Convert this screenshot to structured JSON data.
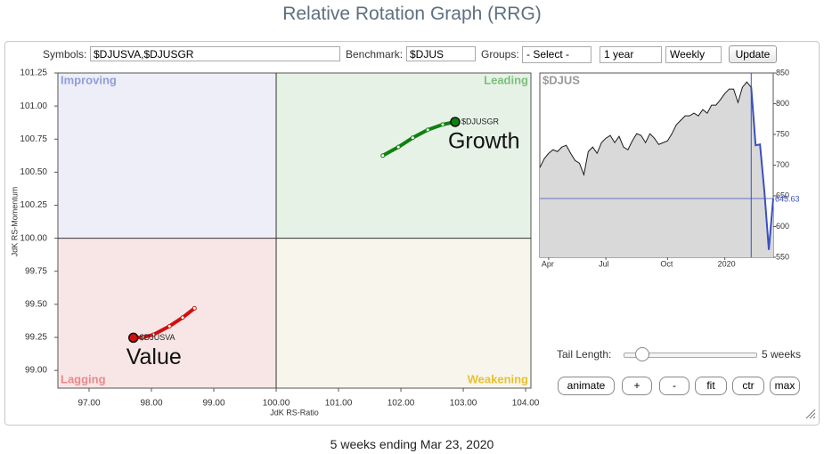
{
  "header": {
    "title": "Relative Rotation Graph (RRG)"
  },
  "controls": {
    "symbols_label": "Symbols:",
    "symbols_value": "$DJUSVA,$DJUSGR",
    "benchmark_label": "Benchmark:",
    "benchmark_value": "$DJUS",
    "groups_label": "Groups:",
    "groups_value": "- Select -",
    "period_value": "1 year",
    "frequency_value": "Weekly",
    "update": "Update"
  },
  "chart_data": [
    {
      "type": "rrg",
      "xlabel": "JdK RS-Ratio",
      "ylabel": "JdK RS-Momentum",
      "xlim": [
        96.5,
        104.085
      ],
      "ylim": [
        98.866,
        101.25
      ],
      "center": [
        100,
        100
      ],
      "xticks": [
        {
          "value": 97,
          "label": "97.00"
        },
        {
          "value": 98,
          "label": "98.00"
        },
        {
          "value": 99,
          "label": "99.00"
        },
        {
          "value": 100,
          "label": "100.00"
        },
        {
          "value": 101,
          "label": "101.00"
        },
        {
          "value": 102,
          "label": "102.00"
        },
        {
          "value": 103,
          "label": "103.00"
        },
        {
          "value": 104,
          "label": "104.00"
        }
      ],
      "yticks": [
        {
          "value": 99,
          "label": "99.00"
        },
        {
          "value": 99.25,
          "label": "99.25"
        },
        {
          "value": 99.5,
          "label": "99.50"
        },
        {
          "value": 99.75,
          "label": "99.75"
        },
        {
          "value": 100,
          "label": "100.00"
        },
        {
          "value": 100.25,
          "label": "100.25"
        },
        {
          "value": 100.5,
          "label": "100.50"
        },
        {
          "value": 100.75,
          "label": "100.75"
        },
        {
          "value": 101,
          "label": "101.00"
        },
        {
          "value": 101.25,
          "label": "101.25"
        }
      ],
      "quadrants": {
        "improving": "Improving",
        "leading": "Leading",
        "lagging": "Lagging",
        "weakening": "Weakening"
      },
      "quadrant_colors": {
        "improving": "#eeeef8",
        "leading": "#e6f2e6",
        "lagging": "#f8e6e6",
        "weakening": "#f8f6ec"
      },
      "quadrant_text_colors": {
        "improving": "#8f9fd8",
        "leading": "#7cbf7c",
        "lagging": "#e88a8a",
        "weakening": "#e8c030"
      },
      "series": [
        {
          "name": "$DJUSVA",
          "color": "#d01010",
          "annotation": "Value",
          "x": [
            98.69,
            98.5,
            98.29,
            98.03,
            97.86,
            97.71
          ],
          "values": [
            99.47,
            99.4,
            99.335,
            99.27,
            99.25,
            99.247
          ]
        },
        {
          "name": "$DJUSGR",
          "color": "#108010",
          "annotation": "Growth",
          "x": [
            101.71,
            101.96,
            102.19,
            102.43,
            102.67,
            102.87
          ],
          "values": [
            100.625,
            100.69,
            100.76,
            100.82,
            100.86,
            100.88
          ]
        }
      ]
    },
    {
      "type": "line",
      "title": "$DJUS",
      "color": "#1a1a1a",
      "fill": "#d9d9d9",
      "marker_color": "#3a50c0",
      "ylim": [
        550,
        850
      ],
      "yticks": [
        550,
        600,
        650,
        700,
        750,
        800,
        850
      ],
      "categories": [
        null,
        null,
        "Apr",
        null,
        null,
        null,
        null,
        null,
        null,
        null,
        null,
        null,
        null,
        null,
        null,
        "Jul",
        null,
        null,
        null,
        null,
        null,
        null,
        null,
        null,
        null,
        null,
        null,
        null,
        null,
        "Oct",
        null,
        null,
        null,
        null,
        null,
        null,
        null,
        null,
        null,
        null,
        null,
        null,
        "2020",
        null,
        null,
        null,
        null,
        null,
        null,
        null,
        null,
        null,
        null,
        null
      ],
      "values": [
        695.9,
        710.5,
        719.2,
        725,
        722.1,
        729.4,
        732.3,
        719.2,
        707.6,
        703.2,
        684.3,
        722.1,
        729.4,
        719.2,
        736.6,
        743.9,
        748.3,
        736.6,
        746.8,
        729.4,
        725,
        739.5,
        751.2,
        748.3,
        736.6,
        751.2,
        743.9,
        733.7,
        736.6,
        739.5,
        751.2,
        765.7,
        773,
        780.2,
        780.2,
        784.6,
        780.2,
        790.4,
        784.6,
        797.7,
        797.7,
        806.4,
        816.6,
        823.8,
        823.8,
        802,
        826.7,
        835.5,
        826.7,
        732.3,
        733.7,
        656.7,
        562.2,
        645.63
      ]
    }
  ],
  "tail_controls": {
    "label": "Tail Length:",
    "value_label": "5 weeks",
    "buttons": [
      "animate",
      "+",
      "-",
      "fit",
      "ctr",
      "max"
    ]
  },
  "footer": {
    "text": "5 weeks ending Mar 23, 2020"
  }
}
